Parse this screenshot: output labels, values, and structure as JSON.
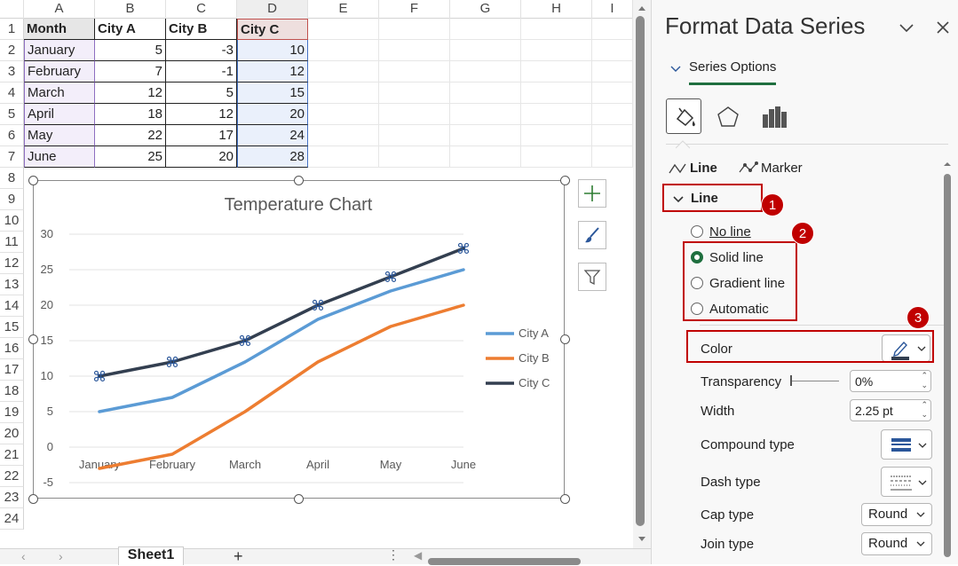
{
  "columns": [
    "A",
    "B",
    "C",
    "D",
    "E",
    "F",
    "G",
    "H",
    "I"
  ],
  "rows": [
    "1",
    "2",
    "3",
    "4",
    "5",
    "6",
    "7",
    "8",
    "9",
    "10",
    "11",
    "12",
    "13",
    "14",
    "15",
    "16",
    "17",
    "18",
    "19",
    "20",
    "21",
    "22",
    "23",
    "24"
  ],
  "table": {
    "headers": [
      "Month",
      "City A",
      "City B",
      "City C"
    ],
    "rows": [
      [
        "January",
        "5",
        "-3",
        "10"
      ],
      [
        "February",
        "7",
        "-1",
        "12"
      ],
      [
        "March",
        "12",
        "5",
        "15"
      ],
      [
        "April",
        "18",
        "12",
        "20"
      ],
      [
        "May",
        "22",
        "17",
        "24"
      ],
      [
        "June",
        "25",
        "20",
        "28"
      ]
    ]
  },
  "sheet_tab": "Sheet1",
  "add_sheet": "+",
  "chart_data": {
    "type": "line",
    "title": "Temperature Chart",
    "categories": [
      "January",
      "February",
      "March",
      "April",
      "May",
      "June"
    ],
    "series": [
      {
        "name": "City A",
        "values": [
          5,
          7,
          12,
          18,
          22,
          25
        ],
        "color": "#5b9bd5"
      },
      {
        "name": "City B",
        "values": [
          -3,
          -1,
          5,
          12,
          17,
          20
        ],
        "color": "#ed7d31"
      },
      {
        "name": "City C",
        "values": [
          10,
          12,
          15,
          20,
          24,
          28
        ],
        "color": "#333f50"
      }
    ],
    "ylim": [
      -5,
      30
    ],
    "yticks": [
      "30",
      "25",
      "20",
      "15",
      "10",
      "5",
      "0",
      "-5"
    ],
    "legend": "right",
    "grid": true
  },
  "panel": {
    "title": "Format Data Series",
    "series_options": "Series Options",
    "tab_line": "Line",
    "tab_marker": "Marker",
    "section_line": "Line",
    "no_line": "No line",
    "solid_line": "Solid line",
    "gradient_line": "Gradient line",
    "automatic": "Automatic",
    "color_label": "Color",
    "transparency_label": "Transparency",
    "transparency_value": "0%",
    "width_label": "Width",
    "width_value": "2.25 pt",
    "compound_label": "Compound type",
    "dash_label": "Dash type",
    "cap_label": "Cap type",
    "cap_value": "Round",
    "join_label": "Join type",
    "join_value": "Round",
    "badges": [
      "1",
      "2",
      "3"
    ]
  },
  "colors": {
    "accent_green": "#1f6f3f",
    "annotation_red": "#c00000"
  }
}
